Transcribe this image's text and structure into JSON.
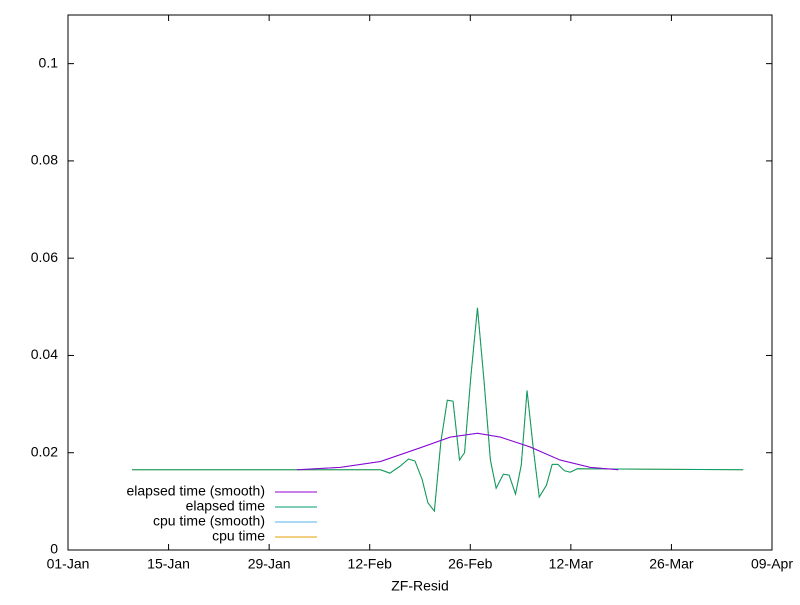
{
  "chart_data": {
    "type": "line",
    "xlabel": "ZF-Resid",
    "xlim": [
      0,
      98
    ],
    "xticks": [
      {
        "value": 0,
        "label": "01-Jan"
      },
      {
        "value": 14,
        "label": "15-Jan"
      },
      {
        "value": 28,
        "label": "29-Jan"
      },
      {
        "value": 42,
        "label": "12-Feb"
      },
      {
        "value": 56,
        "label": "26-Feb"
      },
      {
        "value": 70,
        "label": "12-Mar"
      },
      {
        "value": 84,
        "label": "26-Mar"
      },
      {
        "value": 98,
        "label": "09-Apr"
      }
    ],
    "ylim": [
      0,
      0.11
    ],
    "yticks": [
      0,
      0.02,
      0.04,
      0.06,
      0.08,
      0.1
    ],
    "grid": false,
    "legend": "bottom-left",
    "series": [
      {
        "name": "elapsed time (smooth)",
        "color": "#9400d3",
        "x": [
          31.9,
          37.9,
          43.5,
          49.0,
          53.2,
          57.0,
          60.2,
          64.3,
          68.5,
          72.7,
          76.6
        ],
        "values": [
          0.0165,
          0.017,
          0.0182,
          0.021,
          0.0232,
          0.024,
          0.0232,
          0.0212,
          0.0185,
          0.017,
          0.0165
        ]
      },
      {
        "name": "elapsed time",
        "color": "#009e73",
        "x": [
          8.9,
          40.7,
          43.5,
          44.8,
          46.2,
          47.4,
          48.3,
          49.3,
          50.1,
          51.0,
          51.9,
          52.8,
          53.6,
          54.5,
          55.2,
          56.1,
          57.0,
          57.9,
          58.8,
          59.6,
          60.6,
          61.4,
          62.3,
          63.1,
          63.9,
          64.8,
          65.6,
          66.6,
          67.4,
          68.2,
          69.1,
          69.9,
          70.9,
          94.0
        ],
        "values": [
          0.0165,
          0.0165,
          0.0165,
          0.0158,
          0.0172,
          0.0187,
          0.0183,
          0.0145,
          0.0097,
          0.008,
          0.0222,
          0.0308,
          0.0306,
          0.0185,
          0.02,
          0.036,
          0.0498,
          0.035,
          0.0185,
          0.0127,
          0.0156,
          0.0154,
          0.0115,
          0.0175,
          0.0328,
          0.0205,
          0.0109,
          0.0133,
          0.0176,
          0.0176,
          0.0163,
          0.016,
          0.0167,
          0.0165
        ]
      },
      {
        "name": "cpu time (smooth)",
        "color": "#56b4e9",
        "x": [
          31.9,
          37.9,
          43.5,
          49.0,
          53.2,
          57.0,
          60.2,
          64.3,
          68.5,
          72.7,
          76.6
        ],
        "values": [
          0.0165,
          0.017,
          0.0182,
          0.021,
          0.0232,
          0.024,
          0.0232,
          0.0212,
          0.0185,
          0.017,
          0.0165
        ]
      },
      {
        "name": "cpu time",
        "color": "#e69f00",
        "x": [
          8.9,
          40.7,
          43.5,
          44.8,
          46.2,
          47.4,
          48.3,
          49.3,
          50.1,
          51.0,
          51.9,
          52.8,
          53.6,
          54.5,
          55.2,
          56.1,
          57.0,
          57.9,
          58.8,
          59.6,
          60.6,
          61.4,
          62.3,
          63.1,
          63.9,
          64.8,
          65.6,
          66.6,
          67.4,
          68.2,
          69.1,
          69.9,
          70.9,
          94.0
        ],
        "values": [
          0.0165,
          0.0165,
          0.0165,
          0.0158,
          0.0172,
          0.0187,
          0.0183,
          0.0145,
          0.0097,
          0.008,
          0.0222,
          0.0308,
          0.0306,
          0.0185,
          0.02,
          0.036,
          0.0498,
          0.035,
          0.0185,
          0.0127,
          0.0156,
          0.0154,
          0.0115,
          0.0175,
          0.0328,
          0.0205,
          0.0109,
          0.0133,
          0.0176,
          0.0176,
          0.0163,
          0.016,
          0.0167,
          0.0165
        ]
      }
    ]
  }
}
